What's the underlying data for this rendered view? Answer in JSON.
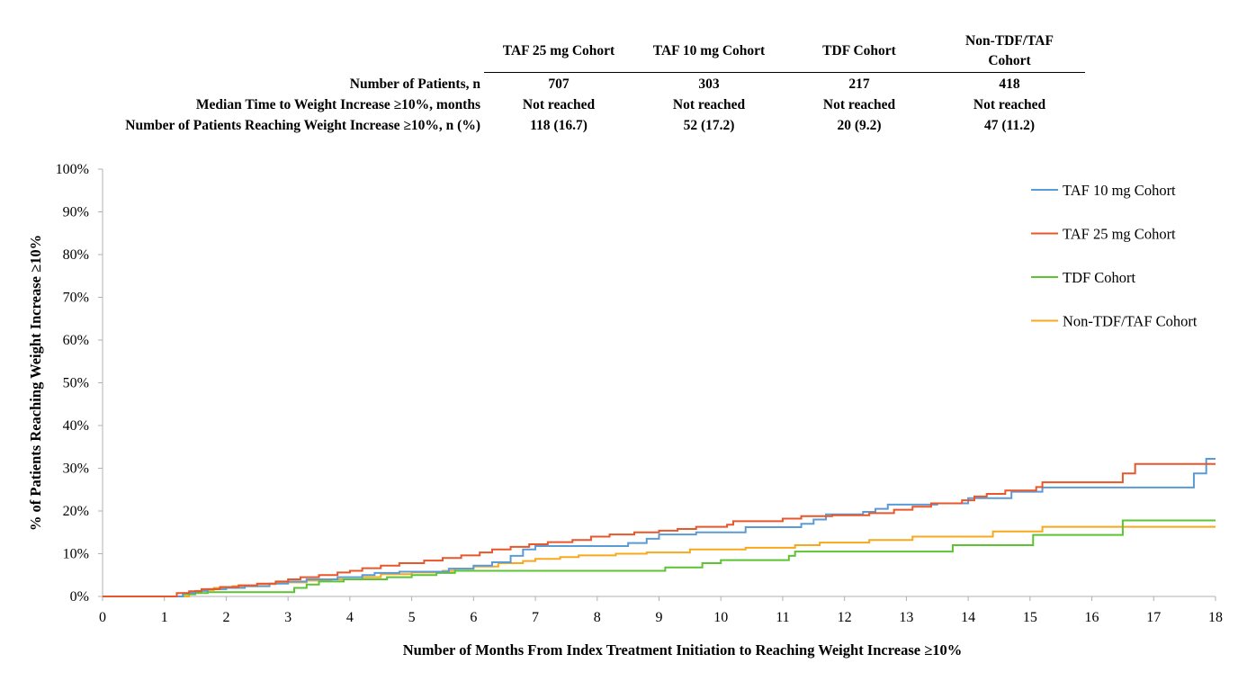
{
  "summary_table": {
    "column_headers": [
      "TAF 25 mg Cohort",
      "TAF 10 mg Cohort",
      "TDF Cohort",
      "Non-TDF/TAF\nCohort"
    ],
    "rows": [
      {
        "label": "Number of Patients, n",
        "cells": [
          "707",
          "303",
          "217",
          "418"
        ]
      },
      {
        "label": "Median Time to Weight Increase ≥10%, months",
        "cells": [
          "Not reached",
          "Not reached",
          "Not reached",
          "Not reached"
        ]
      },
      {
        "label": "Number of Patients Reaching Weight Increase ≥10%, n (%)",
        "cells": [
          "118 (16.7)",
          "52 (17.2)",
          "20 (9.2)",
          "47 (11.2)"
        ]
      }
    ]
  },
  "chart_data": {
    "type": "line",
    "step": true,
    "xlabel": "Number of Months From Index Treatment Initiation to Reaching Weight Increase ≥10%",
    "ylabel": "% of Patients Reaching Weight Increase ≥10%",
    "xlim": [
      0,
      18
    ],
    "ylim": [
      0,
      100
    ],
    "xticks": [
      "0",
      "1",
      "2",
      "3",
      "4",
      "5",
      "6",
      "7",
      "8",
      "9",
      "10",
      "11",
      "12",
      "13",
      "14",
      "15",
      "16",
      "17",
      "18"
    ],
    "yticks": [
      "0%",
      "10%",
      "20%",
      "30%",
      "40%",
      "50%",
      "60%",
      "70%",
      "80%",
      "90%",
      "100%"
    ],
    "grid": false,
    "legend_position": "top-right",
    "series": [
      {
        "name": "TAF 10 mg Cohort",
        "color": "#5B9BD5",
        "points": [
          [
            0,
            0
          ],
          [
            1.2,
            0
          ],
          [
            1.3,
            0.8
          ],
          [
            1.5,
            1.3
          ],
          [
            1.7,
            1.7
          ],
          [
            2.0,
            2.0
          ],
          [
            2.3,
            2.4
          ],
          [
            2.7,
            3.0
          ],
          [
            3.0,
            3.5
          ],
          [
            3.3,
            4.0
          ],
          [
            3.8,
            4.5
          ],
          [
            4.2,
            5.0
          ],
          [
            4.4,
            5.5
          ],
          [
            4.8,
            5.8
          ],
          [
            5.6,
            6.5
          ],
          [
            6.0,
            7.2
          ],
          [
            6.3,
            8.0
          ],
          [
            6.6,
            9.5
          ],
          [
            6.8,
            11.0
          ],
          [
            7.0,
            11.8
          ],
          [
            8.0,
            11.8
          ],
          [
            8.5,
            12.5
          ],
          [
            8.8,
            13.5
          ],
          [
            9.0,
            14.5
          ],
          [
            9.6,
            15.0
          ],
          [
            10.4,
            16.2
          ],
          [
            11.3,
            17.0
          ],
          [
            11.5,
            18.0
          ],
          [
            11.7,
            19.2
          ],
          [
            12.3,
            19.8
          ],
          [
            12.5,
            20.5
          ],
          [
            12.7,
            21.5
          ],
          [
            13.5,
            21.8
          ],
          [
            14.0,
            23.0
          ],
          [
            14.7,
            24.5
          ],
          [
            15.2,
            25.5
          ],
          [
            17.6,
            25.5
          ],
          [
            17.65,
            28.8
          ],
          [
            17.85,
            32.2
          ],
          [
            18.0,
            32.2
          ]
        ]
      },
      {
        "name": "TAF 25 mg Cohort",
        "color": "#E8562A",
        "points": [
          [
            0,
            0
          ],
          [
            1.1,
            0
          ],
          [
            1.2,
            0.8
          ],
          [
            1.4,
            1.2
          ],
          [
            1.6,
            1.7
          ],
          [
            1.9,
            2.2
          ],
          [
            2.2,
            2.6
          ],
          [
            2.5,
            3.0
          ],
          [
            2.8,
            3.5
          ],
          [
            3.0,
            4.0
          ],
          [
            3.2,
            4.5
          ],
          [
            3.5,
            5.0
          ],
          [
            3.8,
            5.6
          ],
          [
            4.0,
            6.0
          ],
          [
            4.2,
            6.6
          ],
          [
            4.5,
            7.2
          ],
          [
            4.8,
            7.8
          ],
          [
            5.2,
            8.4
          ],
          [
            5.5,
            9.0
          ],
          [
            5.8,
            9.6
          ],
          [
            6.1,
            10.3
          ],
          [
            6.3,
            11.0
          ],
          [
            6.6,
            11.6
          ],
          [
            6.9,
            12.2
          ],
          [
            7.2,
            12.7
          ],
          [
            7.6,
            13.2
          ],
          [
            7.9,
            14.0
          ],
          [
            8.2,
            14.5
          ],
          [
            8.6,
            15.0
          ],
          [
            9.0,
            15.4
          ],
          [
            9.3,
            15.8
          ],
          [
            9.6,
            16.3
          ],
          [
            10.1,
            16.8
          ],
          [
            10.2,
            17.6
          ],
          [
            11.0,
            18.2
          ],
          [
            11.3,
            18.8
          ],
          [
            11.8,
            19.0
          ],
          [
            12.4,
            19.5
          ],
          [
            12.8,
            20.3
          ],
          [
            13.1,
            21.0
          ],
          [
            13.4,
            21.8
          ],
          [
            13.9,
            22.5
          ],
          [
            14.1,
            23.4
          ],
          [
            14.3,
            24.0
          ],
          [
            14.6,
            24.8
          ],
          [
            15.1,
            25.6
          ],
          [
            15.2,
            26.7
          ],
          [
            16.4,
            26.7
          ],
          [
            16.5,
            28.8
          ],
          [
            16.7,
            31.0
          ],
          [
            18.0,
            31.0
          ]
        ]
      },
      {
        "name": "TDF Cohort",
        "color": "#5CC432",
        "points": [
          [
            0,
            0
          ],
          [
            1.2,
            0
          ],
          [
            1.3,
            0.5
          ],
          [
            1.5,
            0.8
          ],
          [
            1.7,
            1.0
          ],
          [
            3.0,
            1.0
          ],
          [
            3.1,
            2.0
          ],
          [
            3.3,
            2.8
          ],
          [
            3.5,
            3.5
          ],
          [
            3.9,
            4.0
          ],
          [
            4.6,
            4.5
          ],
          [
            5.0,
            5.0
          ],
          [
            5.4,
            5.5
          ],
          [
            5.7,
            6.0
          ],
          [
            9.0,
            6.0
          ],
          [
            9.1,
            6.8
          ],
          [
            9.7,
            7.8
          ],
          [
            10.0,
            8.5
          ],
          [
            11.0,
            8.5
          ],
          [
            11.1,
            9.5
          ],
          [
            11.2,
            10.5
          ],
          [
            13.7,
            10.5
          ],
          [
            13.75,
            12.0
          ],
          [
            15.0,
            12.0
          ],
          [
            15.05,
            14.4
          ],
          [
            16.5,
            14.4
          ],
          [
            16.5,
            17.8
          ],
          [
            18.0,
            17.8
          ]
        ]
      },
      {
        "name": "Non-TDF/TAF Cohort",
        "color": "#F7A81C",
        "points": [
          [
            0,
            0
          ],
          [
            1.3,
            0
          ],
          [
            1.4,
            1.0
          ],
          [
            1.6,
            1.5
          ],
          [
            1.8,
            2.0
          ],
          [
            2.1,
            2.4
          ],
          [
            2.5,
            2.9
          ],
          [
            2.8,
            3.3
          ],
          [
            3.3,
            3.7
          ],
          [
            3.7,
            4.0
          ],
          [
            4.2,
            4.5
          ],
          [
            4.5,
            5.2
          ],
          [
            5.0,
            5.6
          ],
          [
            5.5,
            6.0
          ],
          [
            5.7,
            6.5
          ],
          [
            6.0,
            7.0
          ],
          [
            6.4,
            7.8
          ],
          [
            6.8,
            8.3
          ],
          [
            7.0,
            8.8
          ],
          [
            7.4,
            9.2
          ],
          [
            7.7,
            9.6
          ],
          [
            8.3,
            10.0
          ],
          [
            8.8,
            10.3
          ],
          [
            9.5,
            11.0
          ],
          [
            10.4,
            11.4
          ],
          [
            11.2,
            12.0
          ],
          [
            11.6,
            12.6
          ],
          [
            12.4,
            13.2
          ],
          [
            13.1,
            14.0
          ],
          [
            14.4,
            15.2
          ],
          [
            15.2,
            16.3
          ],
          [
            18.0,
            16.3
          ]
        ]
      }
    ]
  }
}
